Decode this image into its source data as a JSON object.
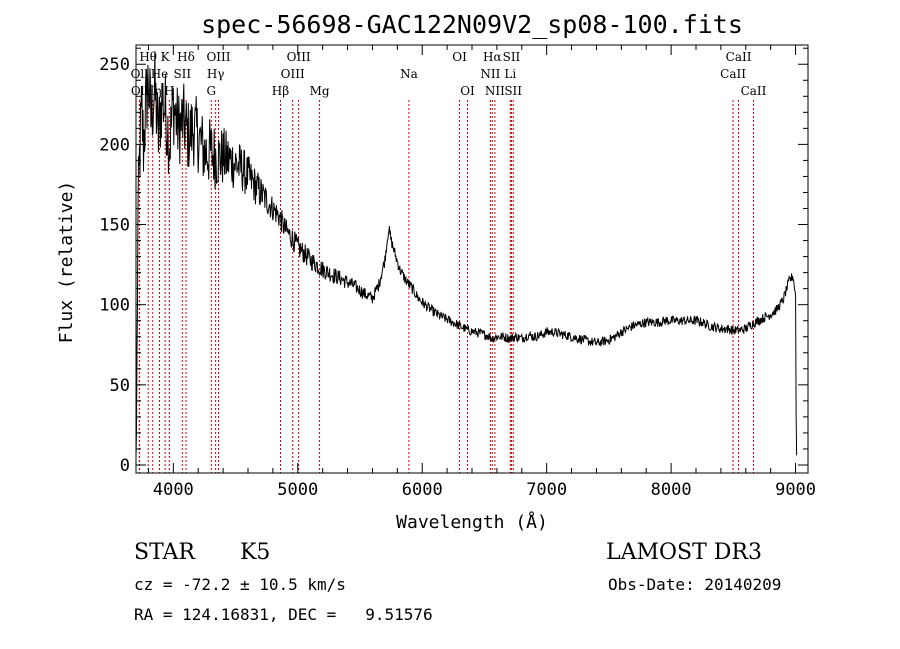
{
  "chart_data": {
    "type": "line",
    "title": "spec-56698-GAC122N09V2_sp08-100.fits",
    "xlabel": "Wavelength (Å)",
    "ylabel": "Flux (relative)",
    "xlim": [
      3700,
      9100
    ],
    "ylim": [
      -5,
      262
    ],
    "xticks": [
      "4000",
      "5000",
      "6000",
      "7000",
      "8000",
      "9000"
    ],
    "yticks": [
      "0",
      "50",
      "100",
      "150",
      "200",
      "250"
    ],
    "xtick_values": [
      4000,
      5000,
      6000,
      7000,
      8000,
      9000
    ],
    "ytick_values": [
      0,
      50,
      100,
      150,
      200,
      250
    ],
    "series": [
      {
        "name": "flux",
        "anchors": [
          [
            3700,
            5
          ],
          [
            3705,
            25
          ],
          [
            3715,
            150
          ],
          [
            3730,
            195
          ],
          [
            3745,
            220
          ],
          [
            3760,
            200
          ],
          [
            3780,
            225
          ],
          [
            3800,
            240
          ],
          [
            3820,
            215
          ],
          [
            3850,
            235
          ],
          [
            3880,
            205
          ],
          [
            3910,
            230
          ],
          [
            3940,
            220
          ],
          [
            3970,
            200
          ],
          [
            4000,
            225
          ],
          [
            4040,
            210
          ],
          [
            4080,
            215
          ],
          [
            4120,
            205
          ],
          [
            4160,
            210
          ],
          [
            4200,
            205
          ],
          [
            4250,
            195
          ],
          [
            4300,
            195
          ],
          [
            4350,
            192
          ],
          [
            4400,
            192
          ],
          [
            4450,
            190
          ],
          [
            4500,
            188
          ],
          [
            4550,
            185
          ],
          [
            4600,
            180
          ],
          [
            4650,
            175
          ],
          [
            4700,
            170
          ],
          [
            4750,
            165
          ],
          [
            4800,
            160
          ],
          [
            4850,
            155
          ],
          [
            4900,
            147
          ],
          [
            4950,
            142
          ],
          [
            5000,
            136
          ],
          [
            5050,
            132
          ],
          [
            5100,
            128
          ],
          [
            5150,
            125
          ],
          [
            5200,
            122
          ],
          [
            5250,
            120
          ],
          [
            5300,
            118
          ],
          [
            5350,
            116
          ],
          [
            5400,
            114
          ],
          [
            5450,
            112
          ],
          [
            5500,
            109
          ],
          [
            5550,
            106
          ],
          [
            5600,
            104
          ],
          [
            5650,
            112
          ],
          [
            5700,
            128
          ],
          [
            5730,
            148
          ],
          [
            5750,
            140
          ],
          [
            5780,
            132
          ],
          [
            5820,
            122
          ],
          [
            5870,
            115
          ],
          [
            5920,
            110
          ],
          [
            5970,
            104
          ],
          [
            6020,
            100
          ],
          [
            6070,
            97
          ],
          [
            6120,
            94
          ],
          [
            6170,
            92
          ],
          [
            6220,
            90
          ],
          [
            6270,
            88
          ],
          [
            6320,
            86
          ],
          [
            6370,
            84
          ],
          [
            6420,
            83
          ],
          [
            6470,
            82
          ],
          [
            6520,
            81
          ],
          [
            6560,
            79
          ],
          [
            6600,
            80
          ],
          [
            6650,
            80
          ],
          [
            6700,
            79
          ],
          [
            6750,
            80
          ],
          [
            6800,
            79
          ],
          [
            6850,
            81
          ],
          [
            6900,
            80
          ],
          [
            6950,
            81
          ],
          [
            7000,
            83
          ],
          [
            7050,
            83
          ],
          [
            7100,
            82
          ],
          [
            7150,
            81
          ],
          [
            7200,
            80
          ],
          [
            7250,
            79
          ],
          [
            7300,
            78
          ],
          [
            7350,
            77
          ],
          [
            7400,
            76
          ],
          [
            7450,
            77
          ],
          [
            7500,
            78
          ],
          [
            7550,
            80
          ],
          [
            7600,
            83
          ],
          [
            7650,
            85
          ],
          [
            7700,
            87
          ],
          [
            7750,
            88
          ],
          [
            7800,
            89
          ],
          [
            7850,
            89
          ],
          [
            7900,
            89
          ],
          [
            7950,
            90
          ],
          [
            8000,
            90
          ],
          [
            8050,
            90
          ],
          [
            8100,
            90
          ],
          [
            8150,
            90
          ],
          [
            8200,
            90
          ],
          [
            8250,
            89
          ],
          [
            8300,
            87
          ],
          [
            8350,
            86
          ],
          [
            8400,
            85
          ],
          [
            8450,
            85
          ],
          [
            8500,
            84
          ],
          [
            8550,
            84
          ],
          [
            8600,
            85
          ],
          [
            8650,
            88
          ],
          [
            8700,
            90
          ],
          [
            8750,
            92
          ],
          [
            8800,
            94
          ],
          [
            8850,
            97
          ],
          [
            8900,
            103
          ],
          [
            8950,
            115
          ],
          [
            8980,
            118
          ],
          [
            9000,
            105
          ],
          [
            9005,
            15
          ],
          [
            9010,
            0
          ]
        ],
        "noise_amplitude": [
          [
            3700,
            28
          ],
          [
            4300,
            22
          ],
          [
            4800,
            8
          ],
          [
            5500,
            4
          ],
          [
            6200,
            3
          ],
          [
            9000,
            3
          ]
        ]
      }
    ],
    "spectral_lines": [
      {
        "label": "Hθ",
        "wavelength": 3798,
        "row": 1
      },
      {
        "label": "Oll",
        "wavelength": 3727,
        "row": 2
      },
      {
        "label": "Oll",
        "wavelength": 3729,
        "row": 3
      },
      {
        "label": "Hη",
        "wavelength": 3835,
        "row": 3
      },
      {
        "label": "K",
        "wavelength": 3934,
        "row": 1
      },
      {
        "label": "He",
        "wavelength": 3889,
        "row": 2
      },
      {
        "label": "H",
        "wavelength": 3968,
        "row": 3
      },
      {
        "label": "Hδ",
        "wavelength": 4102,
        "row": 1
      },
      {
        "label": "SII",
        "wavelength": 4072,
        "row": 2
      },
      {
        "label": "OIII",
        "wavelength": 4363,
        "row": 1
      },
      {
        "label": "Hγ",
        "wavelength": 4340,
        "row": 2
      },
      {
        "label": "G",
        "wavelength": 4305,
        "row": 3
      },
      {
        "label": "Hβ",
        "wavelength": 4861,
        "row": 3
      },
      {
        "label": "OIII",
        "wavelength": 5007,
        "row": 1
      },
      {
        "label": "OIII",
        "wavelength": 4959,
        "row": 2
      },
      {
        "label": "Mg",
        "wavelength": 5175,
        "row": 3
      },
      {
        "label": "Na",
        "wavelength": 5893,
        "row": 2
      },
      {
        "label": "OI",
        "wavelength": 6300,
        "row": 1
      },
      {
        "label": "OI",
        "wavelength": 6364,
        "row": 3
      },
      {
        "label": "Hα",
        "wavelength": 6563,
        "row": 1
      },
      {
        "label": "NII",
        "wavelength": 6548,
        "row": 2
      },
      {
        "label": "NII",
        "wavelength": 6584,
        "row": 3
      },
      {
        "label": "SII",
        "wavelength": 6717,
        "row": 1
      },
      {
        "label": "Li",
        "wavelength": 6708,
        "row": 2
      },
      {
        "label": "SII",
        "wavelength": 6731,
        "row": 3
      },
      {
        "label": "CaII",
        "wavelength": 8542,
        "row": 1
      },
      {
        "label": "CaII",
        "wavelength": 8498,
        "row": 2
      },
      {
        "label": "CaII",
        "wavelength": 8662,
        "row": 3
      }
    ]
  },
  "info": {
    "object_class": "STAR",
    "subclass": "K5",
    "survey": "LAMOST DR3",
    "redshift": "cz = -72.2 ± 10.5 km/s",
    "obs_date": "Obs-Date: 20140209",
    "coords": "RA = 124.16831, DEC =   9.51576"
  }
}
